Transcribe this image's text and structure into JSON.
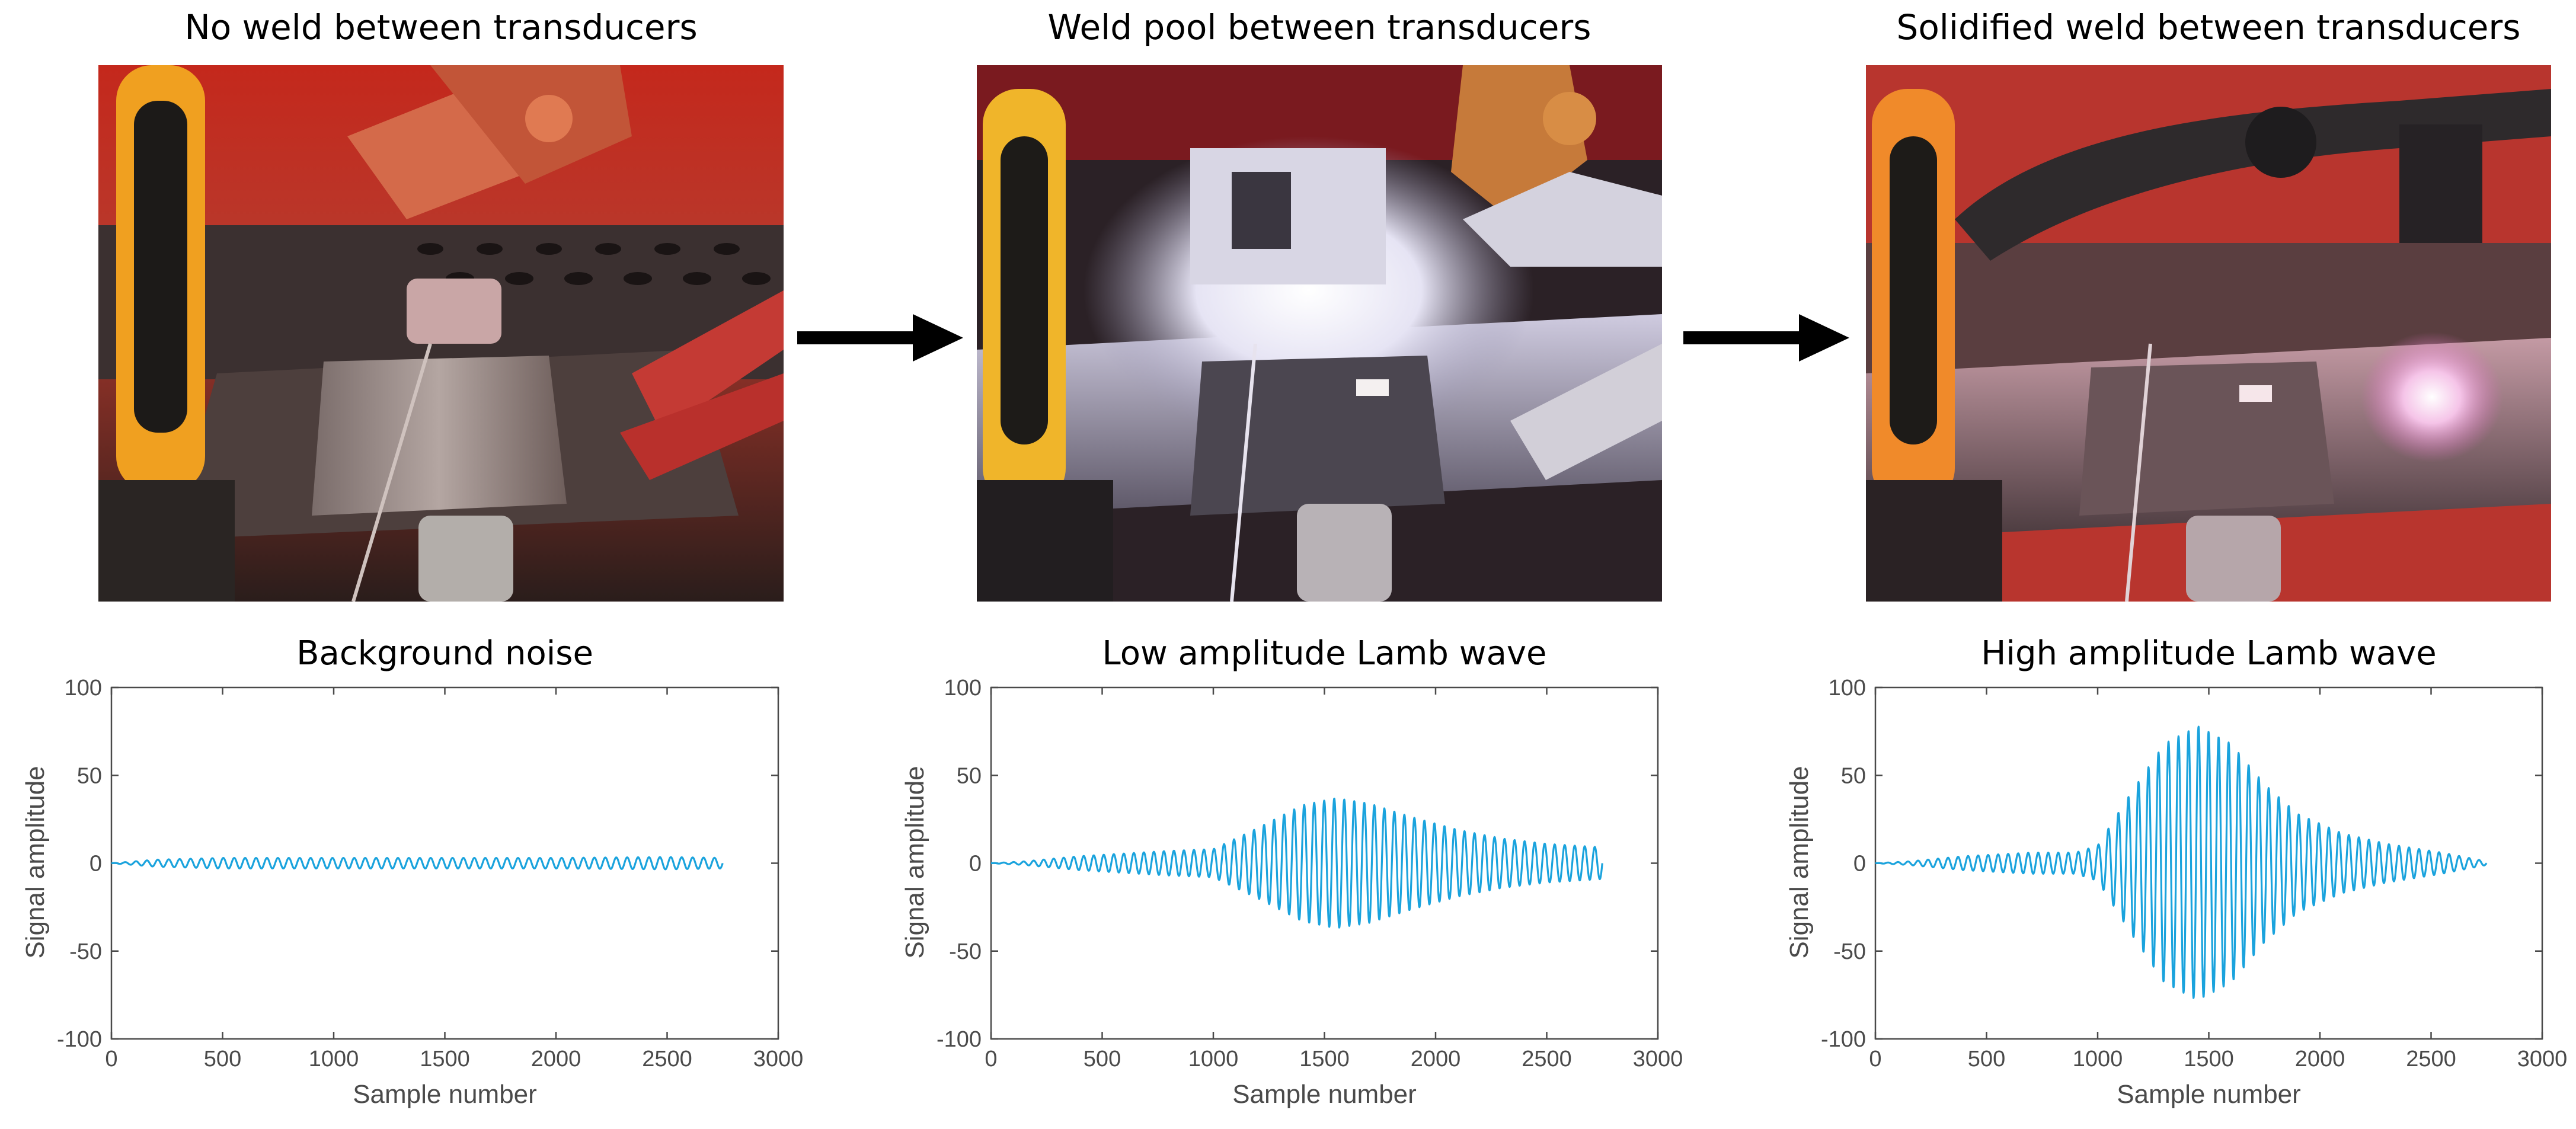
{
  "photos": [
    {
      "title": "No weld between transducers"
    },
    {
      "title": "Weld pool between transducers"
    },
    {
      "title": "Solidified weld between transducers"
    }
  ],
  "colors": {
    "signal": "#1aa3dd",
    "axis": "#4a4a4a",
    "arrow": "#000000"
  },
  "chart_data": [
    {
      "type": "line",
      "title": "Background noise",
      "xlabel": "Sample number",
      "ylabel": "Signal amplitude",
      "xlim": [
        0,
        3000
      ],
      "ylim": [
        -100,
        100
      ],
      "xticks": [
        0,
        500,
        1000,
        1500,
        2000,
        2500,
        3000
      ],
      "yticks": [
        100,
        50,
        0,
        -50,
        -100
      ],
      "grid": false,
      "series": [
        {
          "x_start": 0,
          "x_end": 2750,
          "cycles": 56,
          "envelope_x": [
            0,
            200,
            500,
            1000,
            1500,
            2000,
            2500,
            2750
          ],
          "envelope_y": [
            0,
            2,
            3,
            3,
            3,
            3,
            3.5,
            3
          ]
        }
      ]
    },
    {
      "type": "line",
      "title": "Low amplitude Lamb wave",
      "xlabel": "Sample number",
      "ylabel": "Signal amplitude",
      "xlim": [
        0,
        3000
      ],
      "ylim": [
        -100,
        100
      ],
      "xticks": [
        0,
        500,
        1000,
        1500,
        2000,
        2500,
        3000
      ],
      "yticks": [
        100,
        50,
        0,
        -50,
        -100
      ],
      "grid": false,
      "series": [
        {
          "x_start": 0,
          "x_end": 2750,
          "cycles": 61,
          "envelope_x": [
            0,
            150,
            400,
            800,
            1000,
            1200,
            1400,
            1550,
            1700,
            1900,
            2100,
            2300,
            2500,
            2750
          ],
          "envelope_y": [
            0,
            1,
            4,
            7,
            8,
            20,
            33,
            37,
            34,
            26,
            19,
            14,
            11,
            9
          ]
        }
      ]
    },
    {
      "type": "line",
      "title": "High amplitude Lamb wave",
      "xlabel": "Sample number",
      "ylabel": "Signal amplitude",
      "xlim": [
        0,
        3000
      ],
      "ylim": [
        -100,
        100
      ],
      "xticks": [
        0,
        500,
        1000,
        1500,
        2000,
        2500,
        3000
      ],
      "yticks": [
        100,
        50,
        0,
        -50,
        -100
      ],
      "grid": false,
      "series": [
        {
          "x_start": 0,
          "x_end": 2750,
          "cycles": 61,
          "envelope_x": [
            0,
            150,
            400,
            700,
            900,
            1000,
            1150,
            1300,
            1450,
            1600,
            1750,
            1900,
            2100,
            2300,
            2550,
            2750
          ],
          "envelope_y": [
            0,
            1,
            4,
            6,
            6,
            10,
            40,
            68,
            78,
            68,
            45,
            28,
            17,
            11,
            6,
            1
          ]
        }
      ]
    }
  ]
}
